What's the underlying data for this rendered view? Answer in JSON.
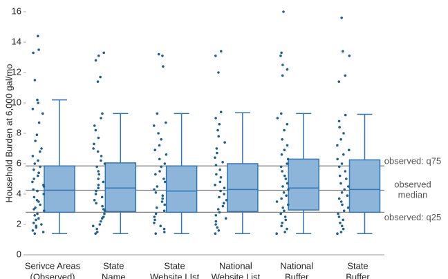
{
  "chart_data": {
    "type": "box",
    "ylabel": "Household Burden at 6,000 gal/mo",
    "categories": [
      [
        "Serivce Areas",
        "(Observed)"
      ],
      [
        "State",
        "Name"
      ],
      [
        "State",
        "Website LIst"
      ],
      [
        "National",
        "Website List"
      ],
      [
        "National",
        "Buffer"
      ],
      [
        "State",
        "Buffer"
      ]
    ],
    "boxes": [
      {
        "low": 1.4,
        "q1": 2.8,
        "median": 4.25,
        "q3": 5.85,
        "high": 10.2
      },
      {
        "low": 1.4,
        "q1": 2.85,
        "median": 4.4,
        "q3": 6.05,
        "high": 9.3
      },
      {
        "low": 1.4,
        "q1": 2.8,
        "median": 4.2,
        "q3": 5.85,
        "high": 9.3
      },
      {
        "low": 1.4,
        "q1": 2.85,
        "median": 4.3,
        "q3": 6.0,
        "high": 9.35
      },
      {
        "low": 1.4,
        "q1": 2.95,
        "median": 4.4,
        "q3": 6.3,
        "high": 9.3
      },
      {
        "low": 1.4,
        "q1": 2.8,
        "median": 4.3,
        "q3": 6.25,
        "high": 9.25
      }
    ],
    "points": [
      [
        14.4,
        13.5,
        13.3,
        11.5,
        10.2,
        10.0,
        9.6,
        9.3,
        8.7,
        7.9,
        7.5,
        7.0,
        6.8,
        6.5,
        6.2,
        6.0,
        5.8,
        5.6,
        5.4,
        5.2,
        5.0,
        4.8,
        4.6,
        4.5,
        4.3,
        4.2,
        4.0,
        3.8,
        3.6,
        3.5,
        3.3,
        3.1,
        3.0,
        2.9,
        2.7,
        2.6,
        2.4,
        2.3,
        2.1,
        2.0,
        1.9,
        1.8,
        1.6,
        1.5,
        1.4
      ],
      [
        13.3,
        13.1,
        12.8,
        11.7,
        11.4,
        9.3,
        9.0,
        8.5,
        8.2,
        7.7,
        7.3,
        7.0,
        6.8,
        6.5,
        6.2,
        6.0,
        5.8,
        5.5,
        5.3,
        5.0,
        4.8,
        4.6,
        4.4,
        4.2,
        4.0,
        3.8,
        3.6,
        3.4,
        3.2,
        3.0,
        2.9,
        2.7,
        2.5,
        2.4,
        2.2,
        2.0,
        1.9,
        1.7,
        1.5,
        1.4
      ],
      [
        13.2,
        13.1,
        12.4,
        9.3,
        8.7,
        8.5,
        8.0,
        7.6,
        7.2,
        6.9,
        6.6,
        6.3,
        6.0,
        5.8,
        5.5,
        5.3,
        5.0,
        4.8,
        4.5,
        4.3,
        4.1,
        3.9,
        3.7,
        3.5,
        3.3,
        3.1,
        2.9,
        2.7,
        2.5,
        2.3,
        2.1,
        1.9,
        1.7,
        1.5,
        1.4
      ],
      [
        13.4,
        13.1,
        12.0,
        9.4,
        9.0,
        8.6,
        8.2,
        7.8,
        7.4,
        7.0,
        6.7,
        6.4,
        6.1,
        5.9,
        5.6,
        5.3,
        5.1,
        4.8,
        4.6,
        4.4,
        4.2,
        4.0,
        3.8,
        3.6,
        3.4,
        3.2,
        3.0,
        2.8,
        2.6,
        2.4,
        2.2,
        2.0,
        1.8,
        1.6,
        1.4
      ],
      [
        16.0,
        13.3,
        13.1,
        12.5,
        12.2,
        11.8,
        9.3,
        9.0,
        8.6,
        8.2,
        7.6,
        7.2,
        6.9,
        6.6,
        6.3,
        6.0,
        5.8,
        5.5,
        5.2,
        5.0,
        4.7,
        4.5,
        4.3,
        4.1,
        3.9,
        3.7,
        3.5,
        3.3,
        3.1,
        2.9,
        2.7,
        2.5,
        2.3,
        2.1,
        1.9,
        1.7,
        1.5,
        1.4
      ],
      [
        15.6,
        13.4,
        13.1,
        11.8,
        11.4,
        9.2,
        8.8,
        8.4,
        8.0,
        7.6,
        7.2,
        6.9,
        6.6,
        6.3,
        6.0,
        5.8,
        5.5,
        5.2,
        5.0,
        4.7,
        4.5,
        4.3,
        4.1,
        3.9,
        3.7,
        3.5,
        3.3,
        3.1,
        2.9,
        2.7,
        2.5,
        2.3,
        2.1,
        1.9,
        1.7,
        1.5,
        1.4
      ]
    ],
    "reference_lines": [
      {
        "value": 5.85,
        "label": [
          "observed: q75"
        ]
      },
      {
        "value": 4.25,
        "label": [
          "observed",
          "median"
        ]
      },
      {
        "value": 2.8,
        "label": [
          "observed: q25"
        ]
      }
    ],
    "box_color": "#8db5da",
    "box_edge_color": "#2e75b6",
    "point_color": "#1f5f8b",
    "reference_color": "#808080",
    "ylim": [
      0,
      16
    ],
    "yticks": [
      0,
      2,
      4,
      6,
      8,
      10,
      12,
      14,
      16
    ]
  }
}
